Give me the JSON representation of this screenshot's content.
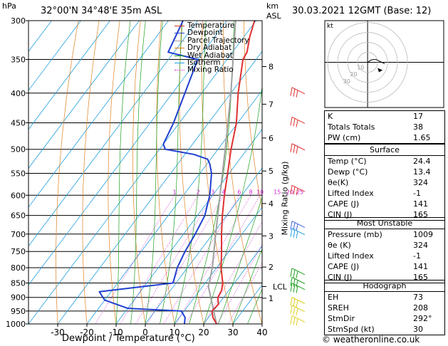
{
  "header": {
    "unit_hpa": "hPa",
    "location": "32°00'N  34°48'E  35m  ASL",
    "unit_km": "km",
    "unit_asl": "ASL",
    "datetime": "30.03.2021  12GMT  (Base: 12)"
  },
  "legend": [
    {
      "label": "Temperature",
      "color": "#e03030"
    },
    {
      "label": "Dewpoint",
      "color": "#2040d0"
    },
    {
      "label": "Parcel Trajectory",
      "color": "#a0a0a0"
    },
    {
      "label": "Dry Adiabat",
      "color": "#e08020"
    },
    {
      "label": "Wet Adiabat",
      "color": "#20a020"
    },
    {
      "label": "Isotherm",
      "color": "#20a0e0"
    },
    {
      "label": "Mixing Ratio",
      "color": "#d020d0"
    }
  ],
  "chart_data": {
    "type": "skew-t",
    "xlabel": "Dewpoint / Temperature (°C)",
    "ylabel_right": "Mixing Ratio (g/kg)",
    "pressure_levels": [
      300,
      350,
      400,
      450,
      500,
      550,
      600,
      650,
      700,
      750,
      800,
      850,
      900,
      950,
      1000
    ],
    "temp_ticks": [
      -30,
      -20,
      -10,
      0,
      10,
      20,
      30,
      40
    ],
    "temp_range": [
      -40,
      40
    ],
    "km_ticks": [
      {
        "label": "1",
        "p": 903
      },
      {
        "label": "2",
        "p": 798
      },
      {
        "label": "3",
        "p": 705
      },
      {
        "label": "4",
        "p": 620
      },
      {
        "label": "5",
        "p": 545
      },
      {
        "label": "6",
        "p": 478
      },
      {
        "label": "7",
        "p": 418
      },
      {
        "label": "8",
        "p": 360
      }
    ],
    "lcl_label": "LCL",
    "lcl_p": 862,
    "mixing_ratio_labels": [
      "1",
      "2",
      "3",
      "4",
      "6",
      "8",
      "10",
      "15",
      "20",
      "25"
    ],
    "temperature": [
      {
        "p": 1000,
        "t": 24.4
      },
      {
        "p": 975,
        "t": 21.5
      },
      {
        "p": 950,
        "t": 19.5
      },
      {
        "p": 925,
        "t": 20.0
      },
      {
        "p": 900,
        "t": 18.0
      },
      {
        "p": 875,
        "t": 17.5
      },
      {
        "p": 850,
        "t": 16.0
      },
      {
        "p": 800,
        "t": 11.5
      },
      {
        "p": 750,
        "t": 7.5
      },
      {
        "p": 700,
        "t": 3.0
      },
      {
        "p": 650,
        "t": -1.5
      },
      {
        "p": 600,
        "t": -6.0
      },
      {
        "p": 550,
        "t": -10.5
      },
      {
        "p": 500,
        "t": -15.5
      },
      {
        "p": 450,
        "t": -20.5
      },
      {
        "p": 400,
        "t": -27.5
      },
      {
        "p": 350,
        "t": -34.5
      },
      {
        "p": 340,
        "t": -35.0
      },
      {
        "p": 320,
        "t": -38.0
      },
      {
        "p": 300,
        "t": -40.5
      }
    ],
    "dewpoint": [
      {
        "p": 1000,
        "t": 13.4
      },
      {
        "p": 975,
        "t": 12.0
      },
      {
        "p": 950,
        "t": 9.0
      },
      {
        "p": 940,
        "t": -10.0
      },
      {
        "p": 910,
        "t": -20.0
      },
      {
        "p": 880,
        "t": -24.0
      },
      {
        "p": 850,
        "t": -1.0
      },
      {
        "p": 800,
        "t": -3.5
      },
      {
        "p": 750,
        "t": -5.0
      },
      {
        "p": 700,
        "t": -6.0
      },
      {
        "p": 650,
        "t": -7.5
      },
      {
        "p": 600,
        "t": -11.0
      },
      {
        "p": 550,
        "t": -16.0
      },
      {
        "p": 530,
        "t": -19.0
      },
      {
        "p": 520,
        "t": -21.0
      },
      {
        "p": 510,
        "t": -27.0
      },
      {
        "p": 500,
        "t": -38.0
      },
      {
        "p": 490,
        "t": -40.0
      },
      {
        "p": 450,
        "t": -42.0
      },
      {
        "p": 350,
        "t": -50.0
      },
      {
        "p": 340,
        "t": -62.0
      },
      {
        "p": 300,
        "t": -65.0
      }
    ],
    "parcel": [
      {
        "p": 1000,
        "t": 24.4
      },
      {
        "p": 862,
        "t": 12.0
      },
      {
        "p": 800,
        "t": 8.5
      },
      {
        "p": 700,
        "t": 1.0
      },
      {
        "p": 600,
        "t": -7.5
      },
      {
        "p": 500,
        "t": -17.5
      },
      {
        "p": 400,
        "t": -30.0
      },
      {
        "p": 300,
        "t": -47.0
      }
    ]
  },
  "hodograph": {
    "unit": "kt",
    "ring_labels": [
      "10",
      "20",
      "30"
    ],
    "trace": [
      [
        0,
        0
      ],
      [
        2,
        1
      ],
      [
        4,
        3
      ],
      [
        8,
        4
      ],
      [
        12,
        4
      ],
      [
        16,
        2
      ],
      [
        20,
        0
      ],
      [
        24,
        -2
      ]
    ]
  },
  "indices": [
    {
      "label": "K",
      "value": "17"
    },
    {
      "label": "Totals Totals",
      "value": "38"
    },
    {
      "label": "PW (cm)",
      "value": "1.65"
    }
  ],
  "surface": {
    "title": "Surface",
    "rows": [
      {
        "label": "Temp (°C)",
        "value": "24.4"
      },
      {
        "label": "Dewp (°C)",
        "value": "13.4"
      },
      {
        "label": "θe(K)",
        "value": "324"
      },
      {
        "label": "Lifted Index",
        "value": "-1"
      },
      {
        "label": "CAPE (J)",
        "value": "141"
      },
      {
        "label": "CIN (J)",
        "value": "165"
      }
    ]
  },
  "most_unstable": {
    "title": "Most Unstable",
    "rows": [
      {
        "label": "Pressure (mb)",
        "value": "1009"
      },
      {
        "label": "θe (K)",
        "value": "324"
      },
      {
        "label": "Lifted Index",
        "value": "-1"
      },
      {
        "label": "CAPE (J)",
        "value": "141"
      },
      {
        "label": "CIN (J)",
        "value": "165"
      }
    ]
  },
  "hodo_table": {
    "title": "Hodograph",
    "rows": [
      {
        "label": "EH",
        "value": "73"
      },
      {
        "label": "SREH",
        "value": "208"
      },
      {
        "label": "StmDir",
        "value": "292°"
      },
      {
        "label": "StmSpd (kt)",
        "value": "30"
      }
    ]
  },
  "wind_levels": [
    {
      "p": 400,
      "color": "#e03030"
    },
    {
      "p": 450,
      "color": "#e03030"
    },
    {
      "p": 500,
      "color": "#e03030"
    },
    {
      "p": 590,
      "color": "#e03030"
    },
    {
      "p": 680,
      "color": "#4060e0"
    },
    {
      "p": 700,
      "color": "#20a0e0"
    },
    {
      "p": 820,
      "color": "#20a020"
    },
    {
      "p": 850,
      "color": "#20a020"
    },
    {
      "p": 870,
      "color": "#20a020"
    },
    {
      "p": 920,
      "color": "#e0d020"
    },
    {
      "p": 950,
      "color": "#e0d020"
    },
    {
      "p": 990,
      "color": "#e0d020"
    }
  ],
  "credit": "© weatheronline.co.uk"
}
